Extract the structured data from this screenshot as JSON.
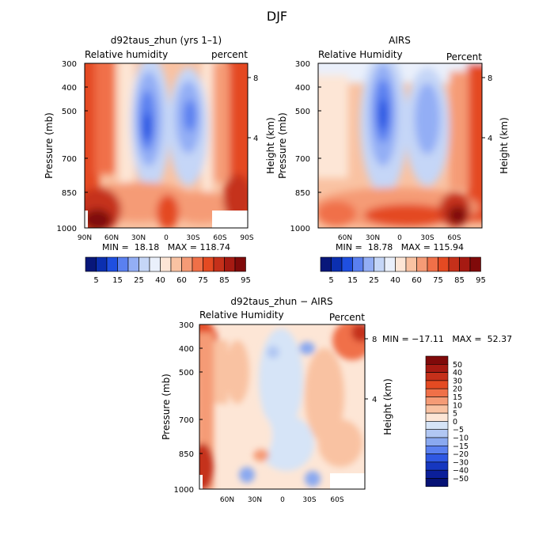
{
  "figure_title": "DJF",
  "chart_data": [
    {
      "type": "heatmap",
      "title": "d92taus_zhun (yrs 1–1)",
      "left_label": "Relative humidity",
      "right_label": "percent",
      "ylabel": "Pressure (mb)",
      "ylabel_right": "Height (km)",
      "y_ticks": [
        "300",
        "400",
        "500",
        "700",
        "850",
        "1000"
      ],
      "y_ticks_right": [
        "8",
        "4"
      ],
      "x_ticks": [
        "90N",
        "60N",
        "30N",
        "0",
        "30S",
        "60S",
        "90S"
      ],
      "stats": "MIN =  18.18   MAX = 118.74",
      "legend_labels": [
        "5",
        "15",
        "25",
        "40",
        "60",
        "75",
        "85",
        "95"
      ]
    },
    {
      "type": "heatmap",
      "title": "AIRS",
      "left_label": "Relative Humidity",
      "right_label": "Percent",
      "ylabel": "Pressure (mb)",
      "ylabel_right": "Height (km)",
      "y_ticks": [
        "300",
        "400",
        "500",
        "700",
        "850",
        "1000"
      ],
      "y_ticks_right": [
        "8",
        "4"
      ],
      "x_ticks": [
        "60N",
        "30N",
        "0",
        "30S",
        "60S"
      ],
      "stats": "MIN =  18.78   MAX = 115.94",
      "legend_labels": [
        "5",
        "15",
        "25",
        "40",
        "60",
        "75",
        "85",
        "95"
      ]
    },
    {
      "type": "heatmap",
      "title": "d92taus_zhun − AIRS",
      "left_label": "Relative Humidity",
      "right_label": "Percent",
      "ylabel": "Pressure (mb)",
      "ylabel_right": "Height (km)",
      "y_ticks": [
        "300",
        "400",
        "500",
        "700",
        "850",
        "1000"
      ],
      "y_ticks_right": [
        "8",
        "4"
      ],
      "x_ticks": [
        "60N",
        "30N",
        "0",
        "30S",
        "60S"
      ],
      "stats": "MIN = −17.11   MAX =  52.37",
      "legend_labels": [
        "50",
        "40",
        "30",
        "20",
        "15",
        "10",
        "5",
        "0",
        "−5",
        "−10",
        "−15",
        "−20",
        "−30",
        "−40",
        "−50"
      ]
    }
  ],
  "colors": {
    "model_obs_scale": [
      "#08177a",
      "#0b2fb0",
      "#1f4fe0",
      "#5a80f0",
      "#93aef5",
      "#c5d6f7",
      "#eaf0fb",
      "#fde6d6",
      "#f9c2a2",
      "#f59b76",
      "#f07048",
      "#e44a22",
      "#c5301a",
      "#a61a12",
      "#800a0a"
    ],
    "diff_scale": [
      "#800a0a",
      "#a61a12",
      "#c5301a",
      "#e44a22",
      "#f07048",
      "#f59b76",
      "#f9c2a2",
      "#fde6d6",
      "#d6e4f7",
      "#b1c7f3",
      "#8aa9f0",
      "#5a80f0",
      "#2f58e3",
      "#1637c0",
      "#0b1f9a",
      "#061275"
    ]
  }
}
